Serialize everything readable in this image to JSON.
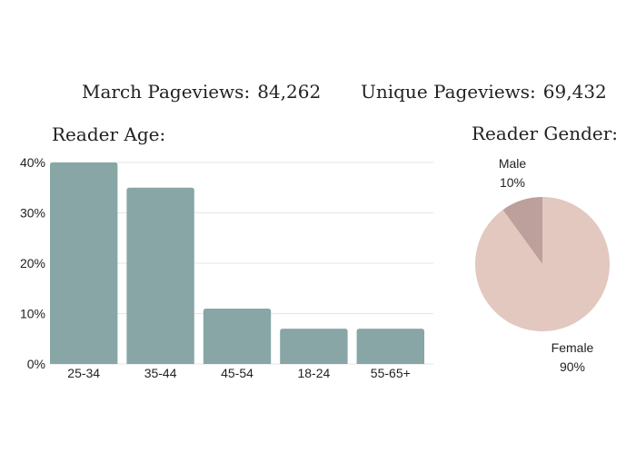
{
  "stats": {
    "pageviews_label": "March Pageviews:",
    "pageviews_value": "84,262",
    "unique_label": "Unique Pageviews:",
    "unique_value": "69,432"
  },
  "age_title": "Reader Age:",
  "gender_title": "Reader Gender:",
  "colors": {
    "bar": "#87a6a5",
    "female": "#e2c8be",
    "male": "#bd9f9b",
    "grid": "#e6e6e6",
    "text": "#222222"
  },
  "chart_data": [
    {
      "type": "bar",
      "title": "Reader Age:",
      "categories": [
        "25-34",
        "35-44",
        "45-54",
        "18-24",
        "55-65+"
      ],
      "values": [
        40,
        35,
        11,
        7,
        7
      ],
      "ylim": [
        0,
        40
      ],
      "yticks": [
        0,
        10,
        20,
        30,
        40
      ],
      "ytick_labels": [
        "0%",
        "10%",
        "20%",
        "30%",
        "40%"
      ],
      "grid": true
    },
    {
      "type": "pie",
      "title": "Reader Gender:",
      "slices": [
        {
          "label": "Female",
          "value": 90,
          "value_label": "90%"
        },
        {
          "label": "Male",
          "value": 10,
          "value_label": "10%"
        }
      ]
    }
  ]
}
